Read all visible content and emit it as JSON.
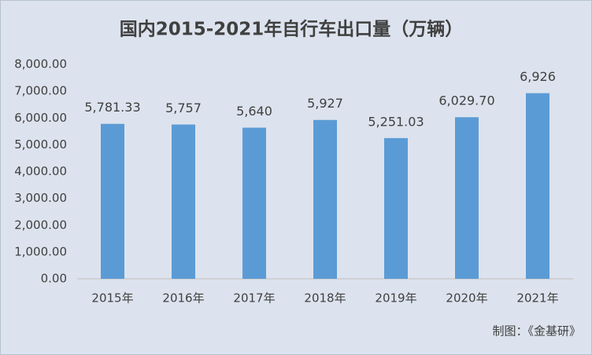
{
  "chart_data": {
    "type": "bar",
    "title": "国内2015-2021年自行车出口量（万辆）",
    "categories": [
      "2015年",
      "2016年",
      "2017年",
      "2018年",
      "2019年",
      "2020年",
      "2021年"
    ],
    "values": [
      5781.33,
      5757,
      5640,
      5927,
      5251.03,
      6029.7,
      6926
    ],
    "value_labels": [
      "5,781.33",
      "5,757",
      "5,640",
      "5,927",
      "5,251.03",
      "6,029.70",
      "6,926"
    ],
    "color": "#5b9bd5",
    "ylim": [
      0,
      8000
    ],
    "yticks": [
      {
        "value": 0,
        "label": "0.00"
      },
      {
        "value": 1000,
        "label": "1,000.00"
      },
      {
        "value": 2000,
        "label": "2,000.00"
      },
      {
        "value": 3000,
        "label": "3,000.00"
      },
      {
        "value": 4000,
        "label": "4,000.00"
      },
      {
        "value": 5000,
        "label": "5,000.00"
      },
      {
        "value": 6000,
        "label": "6,000.00"
      },
      {
        "value": 7000,
        "label": "7,000.00"
      },
      {
        "value": 8000,
        "label": "8,000.00"
      }
    ],
    "grid": false,
    "source": "制图：《金基研》"
  }
}
